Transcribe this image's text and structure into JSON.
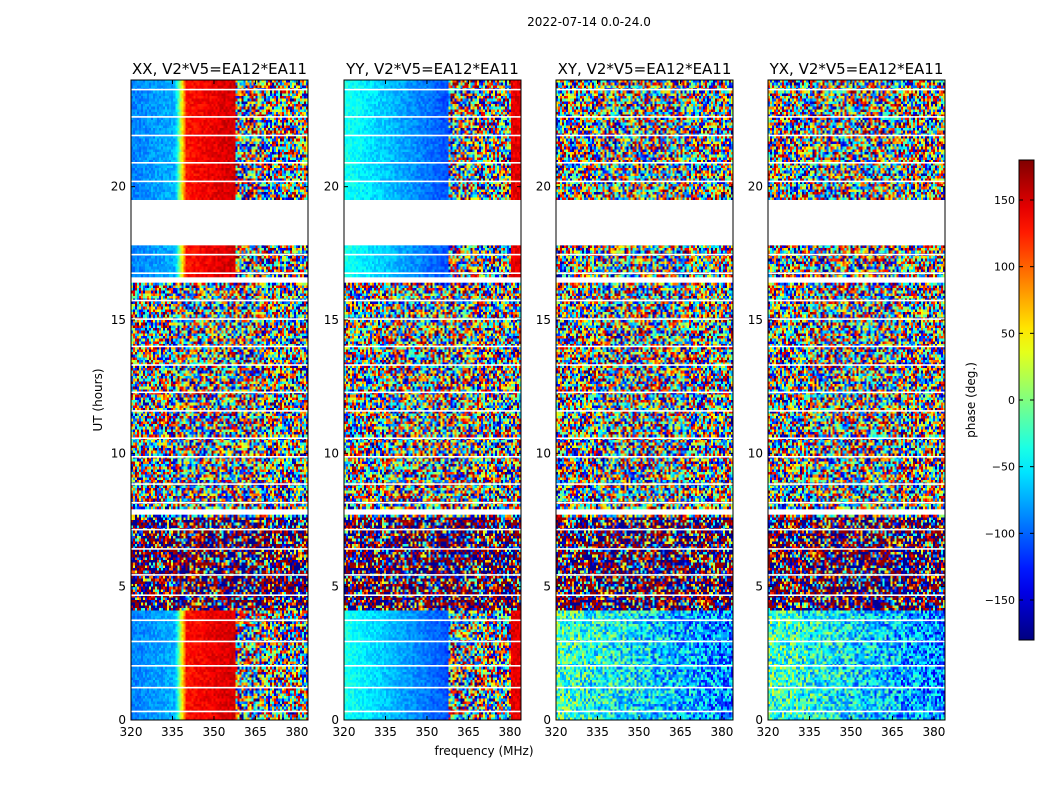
{
  "figure_title": "2022-07-14 0.0-24.0",
  "colors": {
    "background": "#ffffff",
    "gap": "#ffffff",
    "frame": "#000000"
  },
  "chart_data": {
    "type": "heatmap",
    "title": "2022-07-14 0.0-24.0",
    "xlabel": "frequency (MHz)",
    "ylabel": "UT (hours)",
    "xlim": [
      320,
      384
    ],
    "ylim": [
      0,
      24
    ],
    "xticks": [
      320,
      335,
      350,
      365,
      380
    ],
    "yticks": [
      0,
      5,
      10,
      15,
      20
    ],
    "panels": [
      {
        "title": "XX, V2*V5=EA12*EA11",
        "product": "XX",
        "kind": "parallel"
      },
      {
        "title": "YY, V2*V5=EA12*EA11",
        "product": "YY",
        "kind": "parallel"
      },
      {
        "title": "XY, V2*V5=EA12*EA11",
        "product": "XY",
        "kind": "cross"
      },
      {
        "title": "YX, V2*V5=EA12*EA11",
        "product": "YX",
        "kind": "cross"
      }
    ],
    "colorbar": {
      "label": "phase (deg.)",
      "range": [
        -180,
        180
      ],
      "ticks": [
        150,
        100,
        50,
        0,
        -50,
        -100,
        -150
      ],
      "tick_labels": [
        "150",
        "100",
        "50",
        "0",
        "−50",
        "−100",
        "−150"
      ],
      "colormap": "jet"
    },
    "flagged_hours": [
      [
        17.8,
        19.5
      ],
      [
        16.4,
        16.6
      ],
      [
        7.7,
        7.9
      ]
    ],
    "noise_band_hours": [
      4.1,
      7.6
    ]
  }
}
